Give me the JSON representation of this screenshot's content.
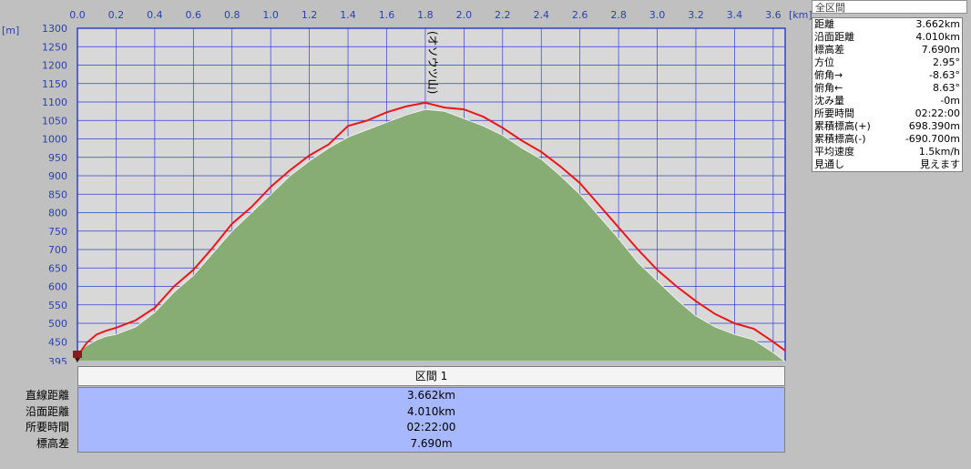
{
  "chart_data": {
    "type": "area",
    "x_unit": "[km]",
    "y_unit": "[m]",
    "xlim": [
      0,
      3.662
    ],
    "ylim": [
      395,
      1300
    ],
    "x_ticks": [
      "0.0",
      "0.2",
      "0.4",
      "0.6",
      "0.8",
      "1.0",
      "1.2",
      "1.4",
      "1.6",
      "1.8",
      "2.0",
      "2.2",
      "2.4",
      "2.6",
      "2.8",
      "3.0",
      "3.2",
      "3.4",
      "3.6"
    ],
    "y_ticks": [
      "1300",
      "1250",
      "1200",
      "1150",
      "1100",
      "1050",
      "1000",
      "950",
      "900",
      "850",
      "800",
      "750",
      "700",
      "650",
      "600",
      "550",
      "500",
      "450",
      "395"
    ],
    "grid": true,
    "annotations": [
      {
        "text": "(オソウツ山)",
        "x": 1.8
      }
    ],
    "series": [
      {
        "role": "terrain",
        "color": "#88ad74",
        "x": [
          0,
          0.05,
          0.1,
          0.15,
          0.2,
          0.3,
          0.4,
          0.5,
          0.6,
          0.7,
          0.8,
          0.9,
          1.0,
          1.1,
          1.2,
          1.3,
          1.4,
          1.5,
          1.6,
          1.7,
          1.8,
          1.9,
          2.0,
          2.1,
          2.2,
          2.3,
          2.4,
          2.5,
          2.6,
          2.7,
          2.8,
          2.9,
          3.0,
          3.1,
          3.2,
          3.3,
          3.4,
          3.5,
          3.6,
          3.662
        ],
        "y": [
          420,
          440,
          455,
          465,
          470,
          490,
          530,
          585,
          630,
          690,
          750,
          800,
          850,
          900,
          940,
          975,
          1005,
          1025,
          1045,
          1065,
          1080,
          1075,
          1055,
          1035,
          1010,
          975,
          945,
          900,
          850,
          790,
          730,
          665,
          615,
          565,
          520,
          490,
          470,
          455,
          420,
          395
        ]
      },
      {
        "role": "route",
        "color": "#e81818",
        "x": [
          0,
          0.05,
          0.1,
          0.15,
          0.2,
          0.3,
          0.4,
          0.5,
          0.6,
          0.7,
          0.8,
          0.9,
          1.0,
          1.1,
          1.2,
          1.3,
          1.4,
          1.5,
          1.6,
          1.7,
          1.8,
          1.9,
          2.0,
          2.1,
          2.2,
          2.3,
          2.4,
          2.5,
          2.6,
          2.7,
          2.8,
          2.9,
          3.0,
          3.1,
          3.2,
          3.3,
          3.4,
          3.5,
          3.6,
          3.662
        ],
        "y": [
          410,
          448,
          470,
          480,
          488,
          508,
          542,
          600,
          645,
          705,
          770,
          815,
          870,
          915,
          955,
          985,
          1035,
          1050,
          1072,
          1088,
          1098,
          1085,
          1080,
          1060,
          1030,
          995,
          965,
          925,
          880,
          820,
          760,
          700,
          645,
          600,
          560,
          525,
          500,
          485,
          450,
          425
        ]
      }
    ]
  },
  "summary": {
    "tab": "全区間",
    "rows": [
      {
        "label": "距離",
        "value": "3.662km"
      },
      {
        "label": "沿面距離",
        "value": "4.010km"
      },
      {
        "label": "標高差",
        "value": "7.690m"
      },
      {
        "label": "方位",
        "value": "2.95°"
      },
      {
        "label": "俯角→",
        "value": "-8.63°"
      },
      {
        "label": "俯角←",
        "value": "8.63°"
      },
      {
        "label": "沈み量",
        "value": "-0m"
      },
      {
        "label": "所要時間",
        "value": "02:22:00"
      },
      {
        "label": "累積標高(+)",
        "value": "698.390m"
      },
      {
        "label": "累積標高(-)",
        "value": "-690.700m"
      },
      {
        "label": "平均速度",
        "value": "1.5km/h"
      },
      {
        "label": "見通し",
        "value": "見えます"
      }
    ]
  },
  "segment": {
    "header": "区間 1",
    "labels": [
      "直線距離",
      "沿面距離",
      "所要時間",
      "標高差"
    ],
    "values": [
      "3.662km",
      "4.010km",
      "02:22:00",
      "7.690m"
    ]
  },
  "colors": {
    "plot_bg": "#d8d8d8",
    "grid": "#3040d0",
    "axis_text": "#2a3fb0",
    "marker": "#8b1a1a"
  }
}
